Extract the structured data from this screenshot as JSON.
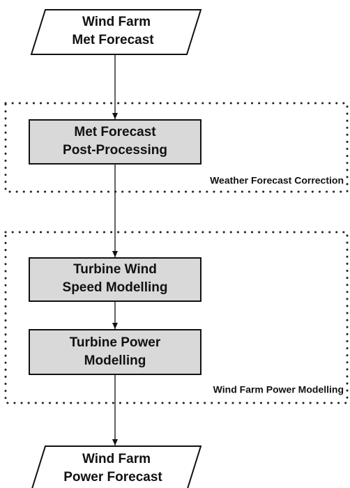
{
  "nodes": [
    {
      "lines": [
        "Wind Farm",
        "Met Forecast"
      ]
    },
    {
      "lines": [
        "Met Forecast",
        "Post-Processing"
      ]
    },
    {
      "lines": [
        "Turbine Wind",
        "Speed Modelling"
      ]
    },
    {
      "lines": [
        "Turbine Power",
        "Modelling"
      ]
    },
    {
      "lines": [
        "Wind Farm",
        "Power Forecast"
      ]
    }
  ],
  "groups": [
    {
      "label": "Weather Forecast Correction"
    },
    {
      "label": "Wind Farm Power Modelling"
    }
  ]
}
